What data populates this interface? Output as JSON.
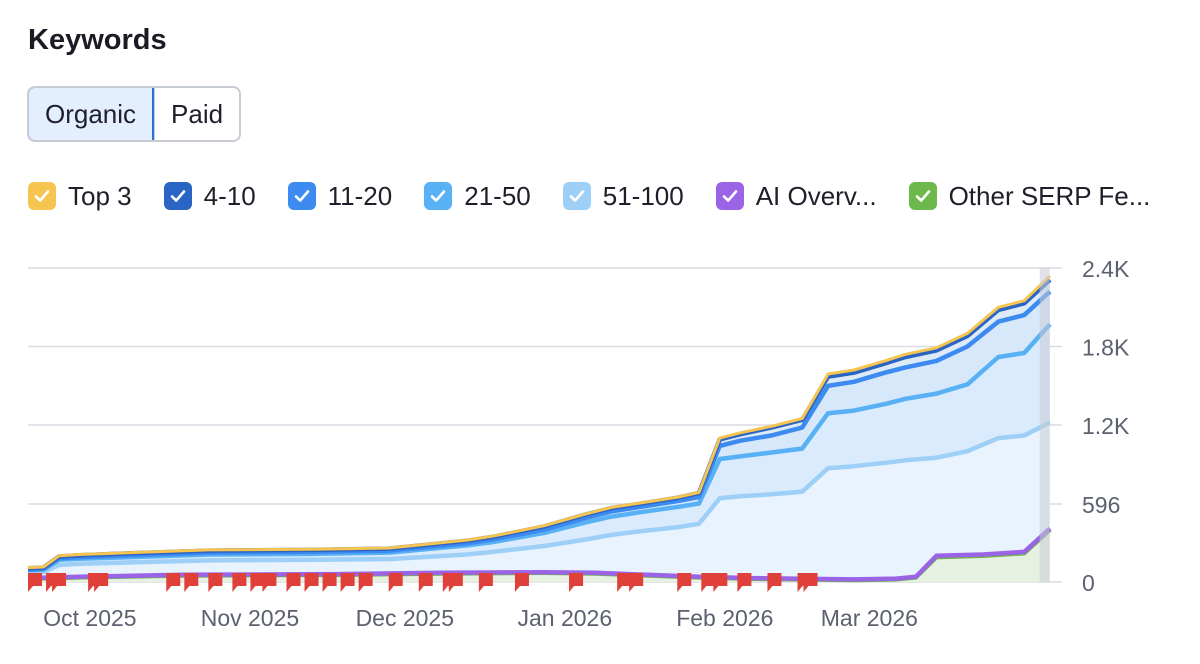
{
  "header": {
    "title": "Keywords"
  },
  "toggle": {
    "organic_label": "Organic",
    "paid_label": "Paid",
    "selected": "Organic"
  },
  "legend": [
    {
      "key": "top3",
      "label": "Top 3",
      "color": "#f5c451",
      "checked": true
    },
    {
      "key": "p4_10",
      "label": "4-10",
      "color": "#2a64c4",
      "checked": true
    },
    {
      "key": "p11_20",
      "label": "11-20",
      "color": "#3d8af0",
      "checked": true
    },
    {
      "key": "p21_50",
      "label": "21-50",
      "color": "#58b0f5",
      "checked": true
    },
    {
      "key": "p51_100",
      "label": "51-100",
      "color": "#9ed0f7",
      "checked": true
    },
    {
      "key": "ai",
      "label": "AI Overv...",
      "color": "#9b63e6",
      "checked": true
    },
    {
      "key": "serp",
      "label": "Other SERP Fe...",
      "color": "#6cb84a",
      "checked": true
    }
  ],
  "chart_data": {
    "type": "area",
    "title": "Keywords",
    "x_tick_labels": [
      "Oct 2025",
      "Nov 2025",
      "Dec 2025",
      "Jan 2026",
      "Feb 2026",
      "Mar 2026"
    ],
    "y_tick_labels": [
      "2.4K",
      "1.8K",
      "1.2K",
      "596",
      "0"
    ],
    "y_ticks": [
      2400,
      1800,
      1200,
      596,
      0
    ],
    "ylim": [
      0,
      2400
    ],
    "x_range_days": [
      0,
      170
    ],
    "x_tick_days": [
      12,
      43,
      73,
      104,
      135,
      163
    ],
    "series": [
      {
        "name": "Top 3",
        "color": "#f5c451",
        "points": [
          [
            0,
            110
          ],
          [
            3,
            115
          ],
          [
            6,
            200
          ],
          [
            10,
            210
          ],
          [
            20,
            225
          ],
          [
            35,
            245
          ],
          [
            55,
            250
          ],
          [
            70,
            260
          ],
          [
            85,
            320
          ],
          [
            90,
            350
          ],
          [
            100,
            430
          ],
          [
            108,
            520
          ],
          [
            113,
            570
          ],
          [
            118,
            600
          ],
          [
            126,
            650
          ],
          [
            130,
            685
          ],
          [
            134,
            1100
          ],
          [
            138,
            1140
          ],
          [
            144,
            1190
          ],
          [
            150,
            1250
          ],
          [
            155,
            1590
          ],
          [
            160,
            1620
          ],
          [
            166,
            1690
          ],
          [
            170,
            1740
          ],
          [
            176,
            1790
          ],
          [
            182,
            1900
          ],
          [
            188,
            2100
          ],
          [
            193,
            2150
          ],
          [
            198,
            2340
          ]
        ]
      },
      {
        "name": "4-10",
        "color": "#2a64c4",
        "points": [
          [
            0,
            105
          ],
          [
            3,
            110
          ],
          [
            6,
            195
          ],
          [
            10,
            205
          ],
          [
            20,
            220
          ],
          [
            35,
            240
          ],
          [
            55,
            245
          ],
          [
            70,
            255
          ],
          [
            85,
            315
          ],
          [
            90,
            345
          ],
          [
            100,
            425
          ],
          [
            108,
            515
          ],
          [
            113,
            565
          ],
          [
            118,
            595
          ],
          [
            126,
            645
          ],
          [
            130,
            680
          ],
          [
            134,
            1090
          ],
          [
            138,
            1130
          ],
          [
            144,
            1180
          ],
          [
            150,
            1240
          ],
          [
            155,
            1570
          ],
          [
            160,
            1600
          ],
          [
            166,
            1670
          ],
          [
            170,
            1720
          ],
          [
            176,
            1770
          ],
          [
            182,
            1880
          ],
          [
            188,
            2080
          ],
          [
            193,
            2130
          ],
          [
            198,
            2310
          ]
        ]
      },
      {
        "name": "11-20",
        "color": "#3d8af0",
        "points": [
          [
            0,
            95
          ],
          [
            3,
            100
          ],
          [
            6,
            180
          ],
          [
            10,
            190
          ],
          [
            20,
            205
          ],
          [
            35,
            225
          ],
          [
            55,
            230
          ],
          [
            70,
            240
          ],
          [
            85,
            295
          ],
          [
            90,
            325
          ],
          [
            100,
            400
          ],
          [
            108,
            490
          ],
          [
            113,
            540
          ],
          [
            118,
            570
          ],
          [
            126,
            620
          ],
          [
            130,
            650
          ],
          [
            134,
            1040
          ],
          [
            138,
            1080
          ],
          [
            144,
            1120
          ],
          [
            150,
            1180
          ],
          [
            155,
            1500
          ],
          [
            160,
            1530
          ],
          [
            166,
            1600
          ],
          [
            170,
            1640
          ],
          [
            176,
            1690
          ],
          [
            182,
            1800
          ],
          [
            188,
            1990
          ],
          [
            193,
            2040
          ],
          [
            198,
            2220
          ]
        ]
      },
      {
        "name": "21-50",
        "color": "#58b0f5",
        "points": [
          [
            0,
            90
          ],
          [
            3,
            95
          ],
          [
            6,
            170
          ],
          [
            10,
            178
          ],
          [
            20,
            190
          ],
          [
            35,
            210
          ],
          [
            55,
            215
          ],
          [
            70,
            225
          ],
          [
            85,
            280
          ],
          [
            90,
            305
          ],
          [
            100,
            375
          ],
          [
            108,
            455
          ],
          [
            113,
            500
          ],
          [
            118,
            530
          ],
          [
            126,
            575
          ],
          [
            130,
            600
          ],
          [
            134,
            940
          ],
          [
            138,
            960
          ],
          [
            144,
            990
          ],
          [
            150,
            1020
          ],
          [
            155,
            1290
          ],
          [
            160,
            1310
          ],
          [
            166,
            1360
          ],
          [
            170,
            1400
          ],
          [
            176,
            1440
          ],
          [
            182,
            1510
          ],
          [
            188,
            1720
          ],
          [
            193,
            1750
          ],
          [
            198,
            1970
          ]
        ]
      },
      {
        "name": "51-100",
        "color": "#9ed0f7",
        "points": [
          [
            0,
            70
          ],
          [
            3,
            75
          ],
          [
            6,
            130
          ],
          [
            10,
            140
          ],
          [
            20,
            150
          ],
          [
            35,
            165
          ],
          [
            55,
            170
          ],
          [
            70,
            175
          ],
          [
            85,
            210
          ],
          [
            90,
            230
          ],
          [
            100,
            275
          ],
          [
            108,
            325
          ],
          [
            113,
            360
          ],
          [
            118,
            385
          ],
          [
            126,
            420
          ],
          [
            130,
            445
          ],
          [
            134,
            640
          ],
          [
            138,
            655
          ],
          [
            144,
            670
          ],
          [
            150,
            690
          ],
          [
            155,
            870
          ],
          [
            160,
            885
          ],
          [
            166,
            910
          ],
          [
            170,
            930
          ],
          [
            176,
            950
          ],
          [
            182,
            1000
          ],
          [
            188,
            1100
          ],
          [
            193,
            1120
          ],
          [
            198,
            1220
          ]
        ]
      },
      {
        "name": "AI Overviews",
        "color": "#9b63e6",
        "points": [
          [
            0,
            30
          ],
          [
            10,
            40
          ],
          [
            30,
            55
          ],
          [
            60,
            60
          ],
          [
            80,
            70
          ],
          [
            100,
            75
          ],
          [
            110,
            70
          ],
          [
            120,
            55
          ],
          [
            130,
            40
          ],
          [
            140,
            30
          ],
          [
            150,
            25
          ],
          [
            160,
            20
          ],
          [
            168,
            25
          ],
          [
            172,
            40
          ],
          [
            176,
            200
          ],
          [
            185,
            210
          ],
          [
            193,
            230
          ],
          [
            198,
            410
          ]
        ]
      },
      {
        "name": "Other SERP Features",
        "color": "#6cb84a",
        "points": [
          [
            0,
            25
          ],
          [
            10,
            35
          ],
          [
            30,
            50
          ],
          [
            60,
            55
          ],
          [
            80,
            65
          ],
          [
            100,
            70
          ],
          [
            110,
            65
          ],
          [
            120,
            50
          ],
          [
            130,
            35
          ],
          [
            140,
            25
          ],
          [
            150,
            20
          ],
          [
            160,
            15
          ],
          [
            168,
            20
          ],
          [
            172,
            35
          ],
          [
            176,
            190
          ],
          [
            185,
            200
          ],
          [
            193,
            220
          ],
          [
            198,
            400
          ]
        ]
      }
    ],
    "markers_days": [
      0,
      3,
      4,
      10,
      11,
      23,
      26,
      30,
      34,
      37,
      39,
      43,
      46,
      49,
      52,
      55,
      60,
      65,
      69,
      70,
      75,
      81,
      90,
      98,
      100,
      108,
      112,
      114,
      118,
      123,
      128,
      129
    ]
  }
}
